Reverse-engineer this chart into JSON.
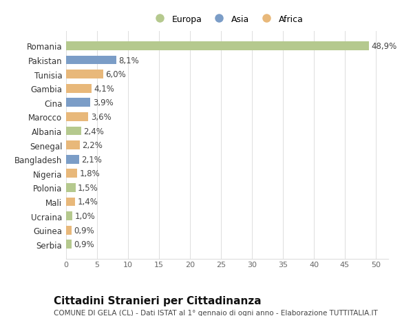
{
  "categories": [
    "Serbia",
    "Guinea",
    "Ucraina",
    "Mali",
    "Polonia",
    "Nigeria",
    "Bangladesh",
    "Senegal",
    "Albania",
    "Marocco",
    "Cina",
    "Gambia",
    "Tunisia",
    "Pakistan",
    "Romania"
  ],
  "values": [
    0.9,
    0.9,
    1.0,
    1.4,
    1.5,
    1.8,
    2.1,
    2.2,
    2.4,
    3.6,
    3.9,
    4.1,
    6.0,
    8.1,
    48.9
  ],
  "continents": [
    "Europa",
    "Africa",
    "Europa",
    "Africa",
    "Europa",
    "Africa",
    "Asia",
    "Africa",
    "Europa",
    "Africa",
    "Asia",
    "Africa",
    "Africa",
    "Asia",
    "Europa"
  ],
  "labels": [
    "0,9%",
    "0,9%",
    "1,0%",
    "1,4%",
    "1,5%",
    "1,8%",
    "2,1%",
    "2,2%",
    "2,4%",
    "3,6%",
    "3,9%",
    "4,1%",
    "6,0%",
    "8,1%",
    "48,9%"
  ],
  "continent_colors": {
    "Europa": "#b5c98e",
    "Asia": "#7b9dc7",
    "Africa": "#e8b87a"
  },
  "legend_order": [
    "Europa",
    "Asia",
    "Africa"
  ],
  "xlim": [
    0,
    52
  ],
  "xticks": [
    0,
    5,
    10,
    15,
    20,
    25,
    30,
    35,
    40,
    45,
    50
  ],
  "title": "Cittadini Stranieri per Cittadinanza",
  "subtitle": "COMUNE DI GELA (CL) - Dati ISTAT al 1° gennaio di ogni anno - Elaborazione TUTTITALIA.IT",
  "background_color": "#ffffff",
  "grid_color": "#dddddd",
  "bar_height": 0.62,
  "label_fontsize": 8.5,
  "tick_fontsize": 8,
  "ytick_fontsize": 8.5,
  "title_fontsize": 11,
  "subtitle_fontsize": 7.5,
  "legend_fontsize": 9
}
